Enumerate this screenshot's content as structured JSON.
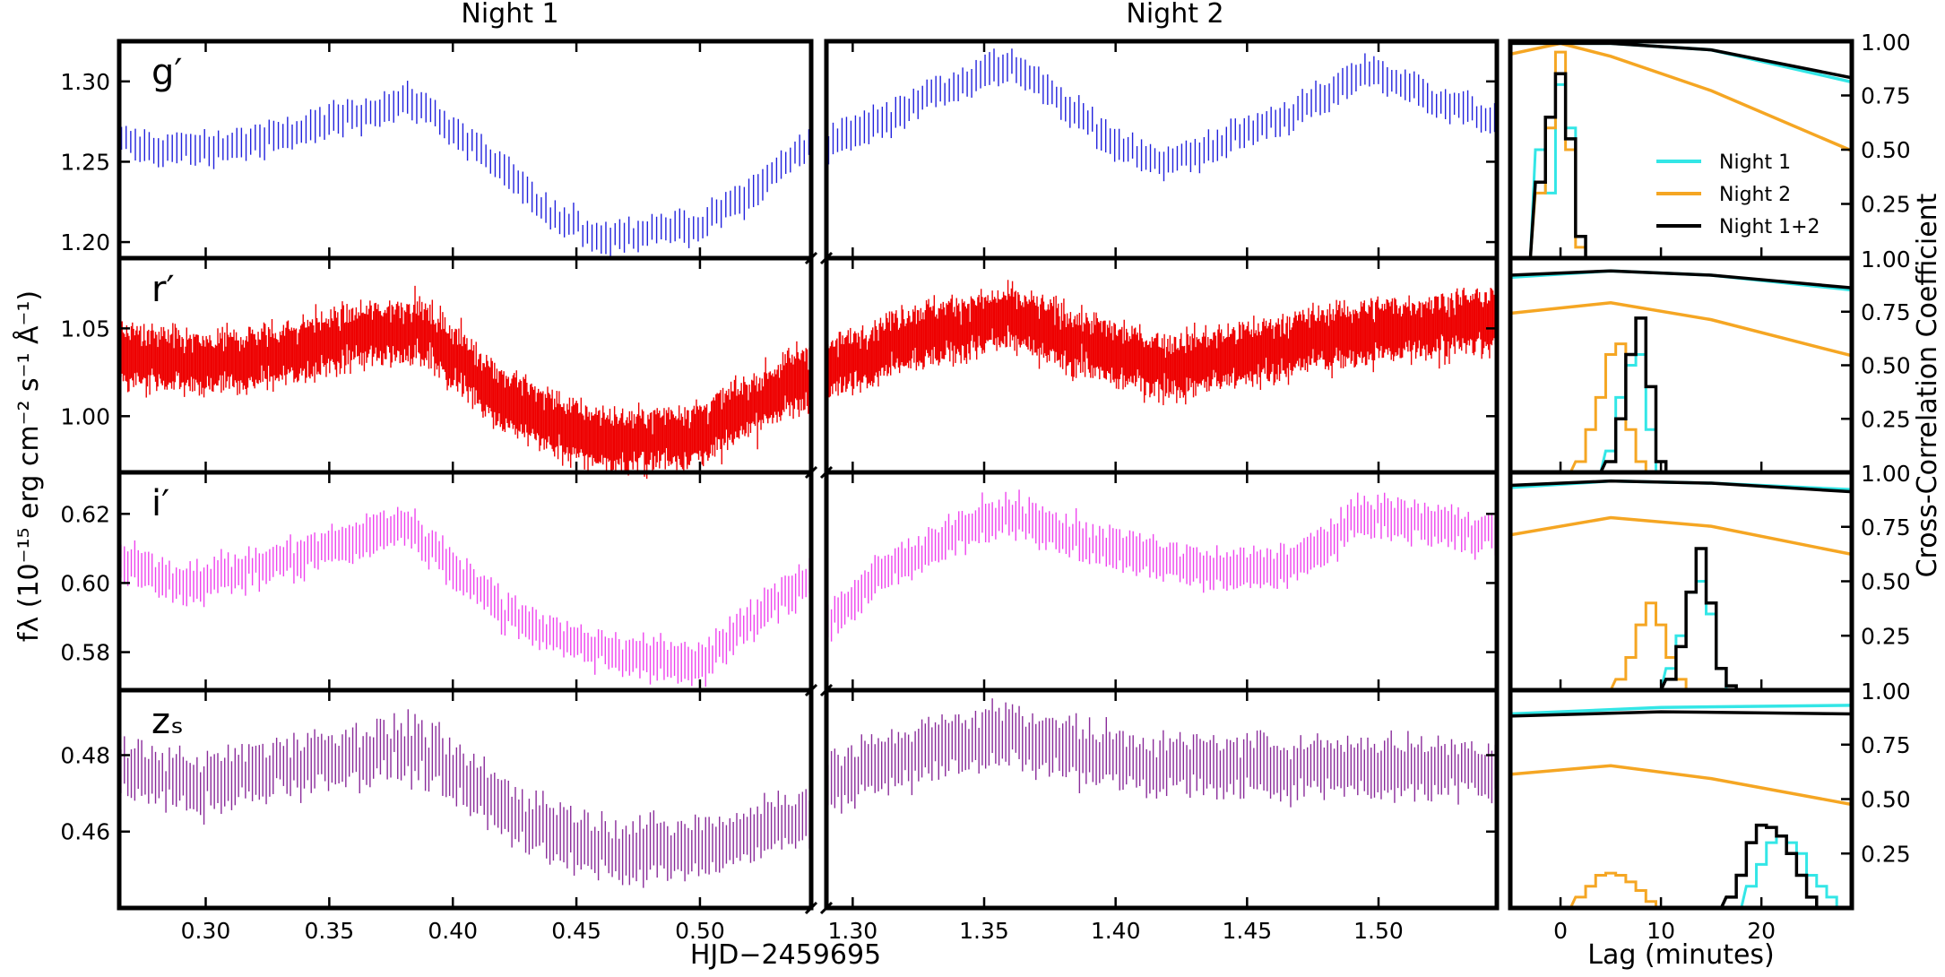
{
  "chart_data": {
    "type": "multi-panel light curves with cross-correlation lag panels",
    "top_labels": [
      "Night 1",
      "Night 2"
    ],
    "xlabel_main": "HJD−2459695",
    "ylabel_main": "fλ (10⁻¹⁵ erg cm⁻² s⁻¹ Å⁻¹)",
    "xlabel_lag": "Lag (minutes)",
    "ylabel_right": "Cross-Correlation Coefficient",
    "night1_xlim": [
      0.265,
      0.545
    ],
    "night2_xlim": [
      1.29,
      1.545
    ],
    "night1_ticks": [
      "0.30",
      "0.35",
      "0.40",
      "0.45",
      "0.50"
    ],
    "night2_ticks": [
      "1.30",
      "1.35",
      "1.40",
      "1.45",
      "1.50"
    ],
    "lag_xlim": [
      -5,
      29
    ],
    "lag_ticks": [
      "0",
      "10",
      "20"
    ],
    "legend": [
      {
        "name": "Night 1",
        "color": "#33e6e6"
      },
      {
        "name": "Night 2",
        "color": "#f5a623"
      },
      {
        "name": "Night 1+2",
        "color": "#000000"
      }
    ],
    "bands": [
      {
        "name": "g′",
        "color": "#2222dd",
        "ylim": [
          1.19,
          1.325
        ],
        "yticks": [
          "1.20",
          "1.25",
          "1.30"
        ],
        "cc_ticks": [
          "0.25",
          "0.50",
          "0.75",
          "1.00"
        ],
        "n1": {
          "n": 150,
          "err": 0.008,
          "x": [
            0.265,
            0.28,
            0.3,
            0.33,
            0.36,
            0.385,
            0.4,
            0.42,
            0.44,
            0.46,
            0.48,
            0.5,
            0.52,
            0.545
          ],
          "y": [
            1.262,
            1.258,
            1.258,
            1.265,
            1.28,
            1.288,
            1.27,
            1.245,
            1.215,
            1.203,
            1.208,
            1.21,
            1.23,
            1.262
          ]
        },
        "n2": {
          "n": 150,
          "err": 0.008,
          "x": [
            1.29,
            1.31,
            1.33,
            1.36,
            1.38,
            1.4,
            1.42,
            1.44,
            1.46,
            1.48,
            1.495,
            1.52,
            1.545
          ],
          "y": [
            1.262,
            1.275,
            1.292,
            1.312,
            1.285,
            1.262,
            1.248,
            1.262,
            1.275,
            1.29,
            1.308,
            1.29,
            1.275
          ]
        },
        "lag_hist": {
          "night1": [
            -2,
            0.5,
            -1,
            0.3,
            0,
            0.8,
            1,
            0.6,
            2,
            0.1,
            3,
            0
          ],
          "night2": [
            -2,
            0.3,
            -1,
            0.6,
            0,
            0.95,
            1,
            0.5,
            2,
            0.05,
            3,
            0
          ],
          "night12": [
            -2,
            0.35,
            -1,
            0.65,
            0,
            0.85,
            1,
            0.55,
            2,
            0.1,
            3,
            0
          ]
        },
        "cc_curves": {
          "night1": [
            [
              -5,
              1.0
            ],
            [
              5,
              1.0
            ],
            [
              15,
              0.97
            ],
            [
              29,
              0.82
            ]
          ],
          "night2": [
            [
              -5,
              0.95
            ],
            [
              0,
              1.0
            ],
            [
              5,
              0.94
            ],
            [
              15,
              0.78
            ],
            [
              29,
              0.5
            ]
          ],
          "night12": [
            [
              -5,
              1.0
            ],
            [
              5,
              1.0
            ],
            [
              15,
              0.97
            ],
            [
              29,
              0.84
            ]
          ]
        }
      },
      {
        "name": "r′",
        "color": "#ee0000",
        "ylim": [
          0.968,
          1.09
        ],
        "yticks": [
          "1.00",
          "1.05"
        ],
        "cc_ticks": [
          "0.25",
          "0.50",
          "0.75",
          "1.00"
        ],
        "n1": {
          "n": 600,
          "err": 0.013,
          "x": [
            0.265,
            0.3,
            0.33,
            0.36,
            0.385,
            0.4,
            0.42,
            0.45,
            0.47,
            0.5,
            0.52,
            0.545
          ],
          "y": [
            1.035,
            1.028,
            1.035,
            1.045,
            1.05,
            1.035,
            1.01,
            0.99,
            0.985,
            0.99,
            1.005,
            1.025
          ]
        },
        "n2": {
          "n": 600,
          "err": 0.013,
          "x": [
            1.29,
            1.32,
            1.36,
            1.38,
            1.4,
            1.42,
            1.45,
            1.48,
            1.51,
            1.545
          ],
          "y": [
            1.025,
            1.045,
            1.055,
            1.045,
            1.035,
            1.028,
            1.035,
            1.045,
            1.05,
            1.055
          ]
        },
        "lag_hist": {
          "night1": [
            5,
            0.1,
            6,
            0.35,
            7,
            0.5,
            8,
            0.55,
            9,
            0.2,
            10,
            0
          ],
          "night2": [
            2,
            0.05,
            3,
            0.2,
            4,
            0.35,
            5,
            0.55,
            6,
            0.6,
            7,
            0.2,
            8,
            0.05,
            9,
            0
          ],
          "night12": [
            5,
            0.05,
            6,
            0.25,
            7,
            0.55,
            8,
            0.72,
            9,
            0.4,
            10,
            0.05,
            11,
            0
          ]
        },
        "cc_curves": {
          "night1": [
            [
              -5,
              0.92
            ],
            [
              5,
              0.95
            ],
            [
              15,
              0.93
            ],
            [
              29,
              0.86
            ]
          ],
          "night2": [
            [
              -5,
              0.75
            ],
            [
              5,
              0.8
            ],
            [
              15,
              0.72
            ],
            [
              29,
              0.55
            ]
          ],
          "night12": [
            [
              -5,
              0.93
            ],
            [
              5,
              0.95
            ],
            [
              15,
              0.93
            ],
            [
              29,
              0.87
            ]
          ]
        }
      },
      {
        "name": "i′",
        "color": "#ee44ee",
        "ylim": [
          0.569,
          0.632
        ],
        "yticks": [
          "0.58",
          "0.60",
          "0.62"
        ],
        "cc_ticks": [
          "0.25",
          "0.50",
          "0.75",
          "1.00"
        ],
        "n1": {
          "n": 200,
          "err": 0.0045,
          "x": [
            0.265,
            0.29,
            0.32,
            0.35,
            0.38,
            0.4,
            0.42,
            0.45,
            0.48,
            0.5,
            0.52,
            0.545
          ],
          "y": [
            0.606,
            0.6,
            0.604,
            0.61,
            0.617,
            0.605,
            0.592,
            0.582,
            0.578,
            0.577,
            0.588,
            0.603
          ]
        },
        "n2": {
          "n": 200,
          "err": 0.0045,
          "x": [
            1.29,
            1.31,
            1.34,
            1.36,
            1.38,
            1.41,
            1.44,
            1.47,
            1.495,
            1.52,
            1.545
          ],
          "y": [
            0.588,
            0.602,
            0.615,
            0.62,
            0.614,
            0.608,
            0.603,
            0.606,
            0.62,
            0.617,
            0.614
          ]
        },
        "lag_hist": {
          "night1": [
            11,
            0.1,
            12,
            0.25,
            13,
            0.45,
            14,
            0.5,
            15,
            0.35,
            16,
            0.1,
            17,
            0
          ],
          "night2": [
            6,
            0.05,
            7,
            0.15,
            8,
            0.3,
            9,
            0.4,
            10,
            0.3,
            11,
            0.15,
            12,
            0.05,
            13,
            0
          ],
          "night12": [
            11,
            0.05,
            12,
            0.2,
            13,
            0.45,
            14,
            0.65,
            15,
            0.4,
            16,
            0.1,
            17,
            0.02,
            18,
            0
          ]
        },
        "cc_curves": {
          "night1": [
            [
              -5,
              0.94
            ],
            [
              5,
              0.97
            ],
            [
              15,
              0.96
            ],
            [
              29,
              0.93
            ]
          ],
          "night2": [
            [
              -5,
              0.72
            ],
            [
              5,
              0.8
            ],
            [
              15,
              0.76
            ],
            [
              29,
              0.63
            ]
          ],
          "night12": [
            [
              -5,
              0.95
            ],
            [
              5,
              0.97
            ],
            [
              15,
              0.96
            ],
            [
              29,
              0.92
            ]
          ]
        }
      },
      {
        "name": "zₛ",
        "color": "#8a2c9a",
        "ylim": [
          0.44,
          0.497
        ],
        "yticks": [
          "0.46",
          "0.48"
        ],
        "cc_ticks": [
          "0.25",
          "0.50",
          "0.75",
          "1.00"
        ],
        "n1": {
          "n": 200,
          "err": 0.006,
          "x": [
            0.265,
            0.3,
            0.33,
            0.36,
            0.385,
            0.4,
            0.43,
            0.46,
            0.49,
            0.51,
            0.545
          ],
          "y": [
            0.476,
            0.472,
            0.477,
            0.48,
            0.482,
            0.475,
            0.463,
            0.456,
            0.455,
            0.457,
            0.465
          ]
        },
        "n2": {
          "n": 200,
          "err": 0.006,
          "x": [
            1.29,
            1.32,
            1.36,
            1.39,
            1.42,
            1.46,
            1.5,
            1.545
          ],
          "y": [
            0.472,
            0.48,
            0.486,
            0.48,
            0.477,
            0.477,
            0.477,
            0.476
          ]
        },
        "lag_hist": {
          "night1": [
            19,
            0.1,
            20,
            0.2,
            21,
            0.3,
            22,
            0.33,
            23,
            0.3,
            24,
            0.25,
            25,
            0.15,
            26,
            0.1,
            27,
            0.05,
            28,
            0
          ],
          "night2": [
            2,
            0.05,
            3,
            0.1,
            4,
            0.15,
            5,
            0.16,
            6,
            0.15,
            7,
            0.12,
            8,
            0.08,
            9,
            0.03,
            10,
            0
          ],
          "night12": [
            17,
            0.05,
            18,
            0.15,
            19,
            0.3,
            20,
            0.38,
            21,
            0.37,
            22,
            0.33,
            23,
            0.25,
            24,
            0.15,
            25,
            0.05,
            26,
            0
          ]
        },
        "cc_curves": {
          "night1": [
            [
              -5,
              0.9
            ],
            [
              10,
              0.93
            ],
            [
              29,
              0.94
            ]
          ],
          "night2": [
            [
              -5,
              0.62
            ],
            [
              5,
              0.66
            ],
            [
              15,
              0.6
            ],
            [
              29,
              0.48
            ]
          ],
          "night12": [
            [
              -5,
              0.89
            ],
            [
              10,
              0.91
            ],
            [
              29,
              0.9
            ]
          ]
        }
      }
    ]
  }
}
